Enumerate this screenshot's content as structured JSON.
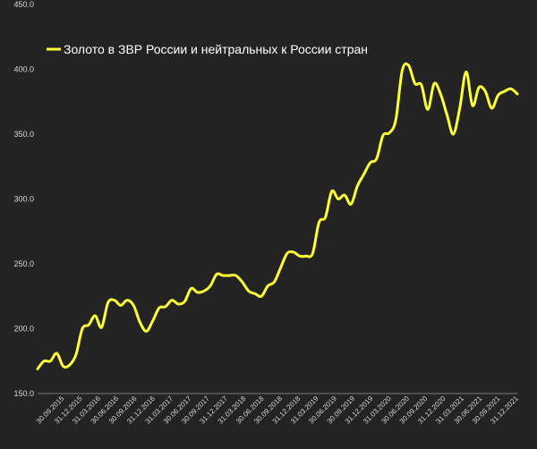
{
  "chart_data": {
    "type": "line",
    "title": "",
    "xlabel": "",
    "ylabel": "",
    "ylim": [
      150,
      450
    ],
    "yticks": [
      "150.0",
      "200.0",
      "250.0",
      "300.0",
      "350.0",
      "400.0",
      "450.0"
    ],
    "xticks": [
      "30.09.2015",
      "31.12.2015",
      "31.03.2016",
      "30.06.2016",
      "30.09.2016",
      "31.12.2016",
      "31.03.2017",
      "30.06.2017",
      "30.09.2017",
      "31.12.2017",
      "31.03.2018",
      "30.06.2018",
      "30.09.2018",
      "31.12.2018",
      "31.03.2019",
      "30.06.2019",
      "30.09.2019",
      "31.12.2019",
      "31.03.2020",
      "30.06.2020",
      "30.09.2020",
      "31.12.2020",
      "31.03.2021",
      "30.06.2021",
      "30.09.2021",
      "31.12.2021"
    ],
    "grid": false,
    "legend_position": "top-left",
    "line_color": "#ffff33",
    "background_color": "#232323",
    "series": [
      {
        "name": "Золото в ЗВР России и нейтральных к России стран",
        "values": [
          169,
          175,
          175,
          181,
          171,
          172,
          180,
          200,
          203,
          210,
          201,
          220,
          222,
          218,
          222,
          218,
          205,
          198,
          206,
          216,
          217,
          222,
          219,
          221,
          231,
          228,
          229,
          233,
          242,
          241,
          241,
          241,
          236,
          229,
          227,
          225,
          233,
          236,
          247,
          258,
          259,
          256,
          256,
          258,
          282,
          286,
          306,
          300,
          303,
          296,
          310,
          319,
          328,
          331,
          349,
          351,
          361,
          399,
          403,
          389,
          388,
          369,
          389,
          381,
          365,
          350,
          370,
          398,
          372,
          386,
          383,
          370,
          380,
          383,
          385,
          381
        ]
      }
    ]
  }
}
